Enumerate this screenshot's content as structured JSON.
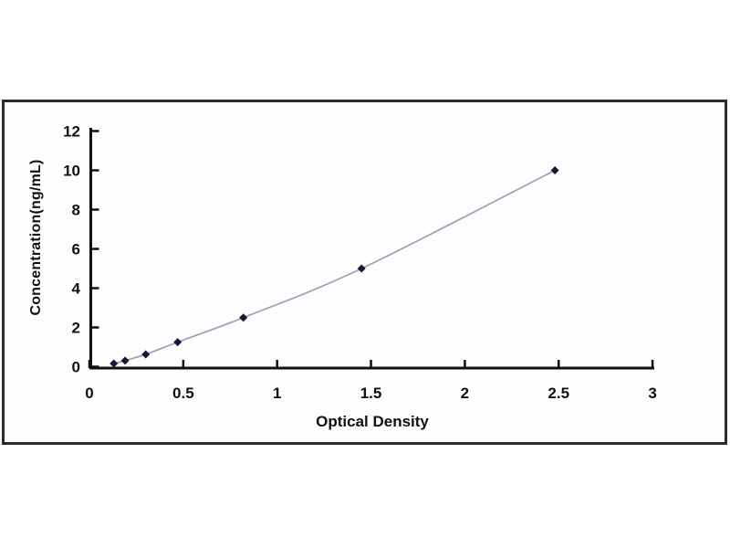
{
  "chart": {
    "xlabel": "Optical Density",
    "ylabel": "Concentration(ng/mL)"
  },
  "chart_data": {
    "type": "line",
    "title": "",
    "xlabel": "Optical Density",
    "ylabel": "Concentration(ng/mL)",
    "xlim": [
      0,
      3
    ],
    "ylim": [
      0,
      12
    ],
    "grid": false,
    "legend": "none",
    "x_tick_labels": [
      "0",
      "0.5",
      "1",
      "1.5",
      "2",
      "2.5",
      "3"
    ],
    "y_tick_labels": [
      "0",
      "2",
      "4",
      "6",
      "8",
      "10",
      "12"
    ],
    "x": [
      0.13,
      0.19,
      0.3,
      0.47,
      0.82,
      1.45,
      2.48
    ],
    "y": [
      0.16,
      0.31,
      0.63,
      1.25,
      2.5,
      5,
      10
    ],
    "marker": "diamond"
  },
  "colors": {
    "frame_border": "#2b2b2b",
    "axis": "#111111",
    "tick_text": "#111111",
    "curve_line": "#9aa0b5",
    "marker_fill": "#16163a",
    "background": "#ffffff"
  }
}
